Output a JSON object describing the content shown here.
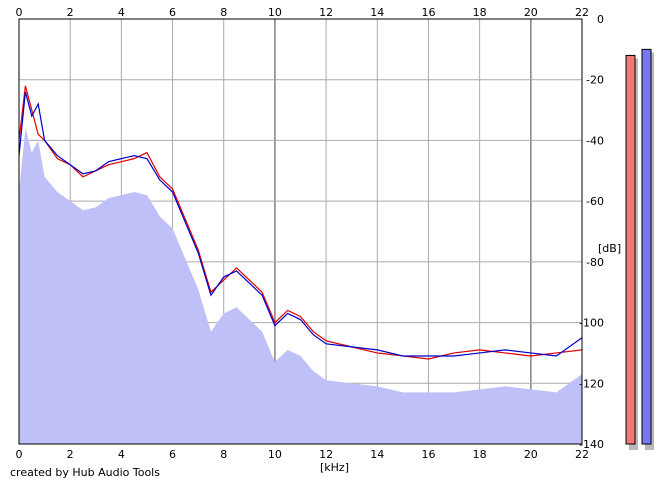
{
  "chart_data": {
    "type": "line",
    "x_unit_label": "[kHz]",
    "y_unit_label": "[dB]",
    "xlim": [
      0,
      22
    ],
    "ylim": [
      -140,
      0
    ],
    "x_ticks": [
      0,
      2,
      4,
      6,
      8,
      10,
      12,
      14,
      16,
      18,
      20,
      22
    ],
    "y_ticks": [
      0,
      -20,
      -40,
      -60,
      -80,
      -100,
      -120,
      -140
    ],
    "grid": true,
    "series": [
      {
        "color": "#e00000",
        "x": [
          0.0,
          0.25,
          0.5,
          0.75,
          1.0,
          1.5,
          2.0,
          2.5,
          3.0,
          3.5,
          4.0,
          4.5,
          5.0,
          5.5,
          6.0,
          6.5,
          7.0,
          7.5,
          8.0,
          8.5,
          9.0,
          9.5,
          10.0,
          10.5,
          11.0,
          11.5,
          12.0,
          13.0,
          14.0,
          15.0,
          16.0,
          17.0,
          18.0,
          19.0,
          20.0,
          21.0,
          22.0
        ],
        "y": [
          -40,
          -22,
          -30,
          -38,
          -40,
          -46,
          -48,
          -52,
          -50,
          -48,
          -47,
          -46,
          -44,
          -52,
          -56,
          -66,
          -76,
          -90,
          -86,
          -82,
          -86,
          -90,
          -100,
          -96,
          -98,
          -103,
          -106,
          -108,
          -110,
          -111,
          -112,
          -110,
          -109,
          -110,
          -111,
          -110,
          -109
        ]
      },
      {
        "color": "#0000cc",
        "x": [
          0.0,
          0.25,
          0.5,
          0.75,
          1.0,
          1.5,
          2.0,
          2.5,
          3.0,
          3.5,
          4.0,
          4.5,
          5.0,
          5.5,
          6.0,
          6.5,
          7.0,
          7.5,
          8.0,
          8.5,
          9.0,
          9.5,
          10.0,
          10.5,
          11.0,
          11.5,
          12.0,
          13.0,
          14.0,
          15.0,
          16.0,
          17.0,
          18.0,
          19.0,
          20.0,
          21.0,
          22.0
        ],
        "y": [
          -45,
          -24,
          -32,
          -28,
          -40,
          -45,
          -48,
          -51,
          -50,
          -47,
          -46,
          -45,
          -46,
          -53,
          -57,
          -67,
          -77,
          -91,
          -85,
          -83,
          -87,
          -91,
          -101,
          -97,
          -99,
          -104,
          -107,
          -108,
          -109,
          -111,
          -111,
          -111,
          -110,
          -109,
          -110,
          -111,
          -105
        ]
      }
    ],
    "level_meters": [
      {
        "color": "#f07878",
        "value_db": -12
      },
      {
        "color": "#7878f0",
        "value_db": -10
      }
    ],
    "fill_color": "#c0c0f8"
  },
  "footer": {
    "credit": "created by Hub Audio Tools"
  }
}
